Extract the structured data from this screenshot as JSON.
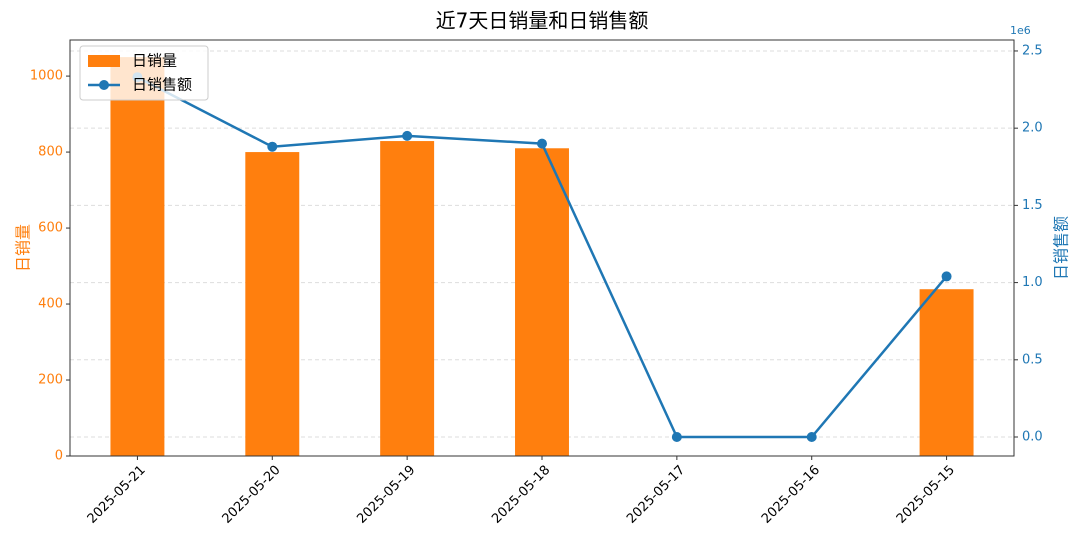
{
  "chart_data": {
    "type": "bar",
    "title": "近7天日销量和日销售额",
    "categories": [
      "2025-05-21",
      "2025-05-20",
      "2025-05-19",
      "2025-05-18",
      "2025-05-17",
      "2025-05-16",
      "2025-05-15"
    ],
    "series": [
      {
        "name": "日销量",
        "type": "bar",
        "color": "#ff7f0e",
        "values": [
          1050,
          800,
          829,
          810,
          0,
          0,
          439
        ]
      },
      {
        "name": "日销售额",
        "type": "line",
        "axis": "y2",
        "color": "#1f77b4",
        "values": [
          2.33,
          1.88,
          1.95,
          1.9,
          0,
          0,
          1.04
        ]
      }
    ],
    "ylabel": "日销量",
    "y2label": "日销售额",
    "y2offset": "1e6",
    "ylim": [
      0,
      1095
    ],
    "yticks": [
      0,
      200,
      400,
      600,
      800,
      1000
    ],
    "y2lim": [
      -0.123,
      2.571
    ],
    "y2ticks": [
      {
        "value": 0,
        "label": "0.0"
      },
      0.5,
      {
        "value": 1,
        "label": "1.0"
      },
      1.5,
      {
        "value": 2,
        "label": "2.0"
      },
      2.5
    ],
    "grid": true,
    "legend": "upper left"
  }
}
